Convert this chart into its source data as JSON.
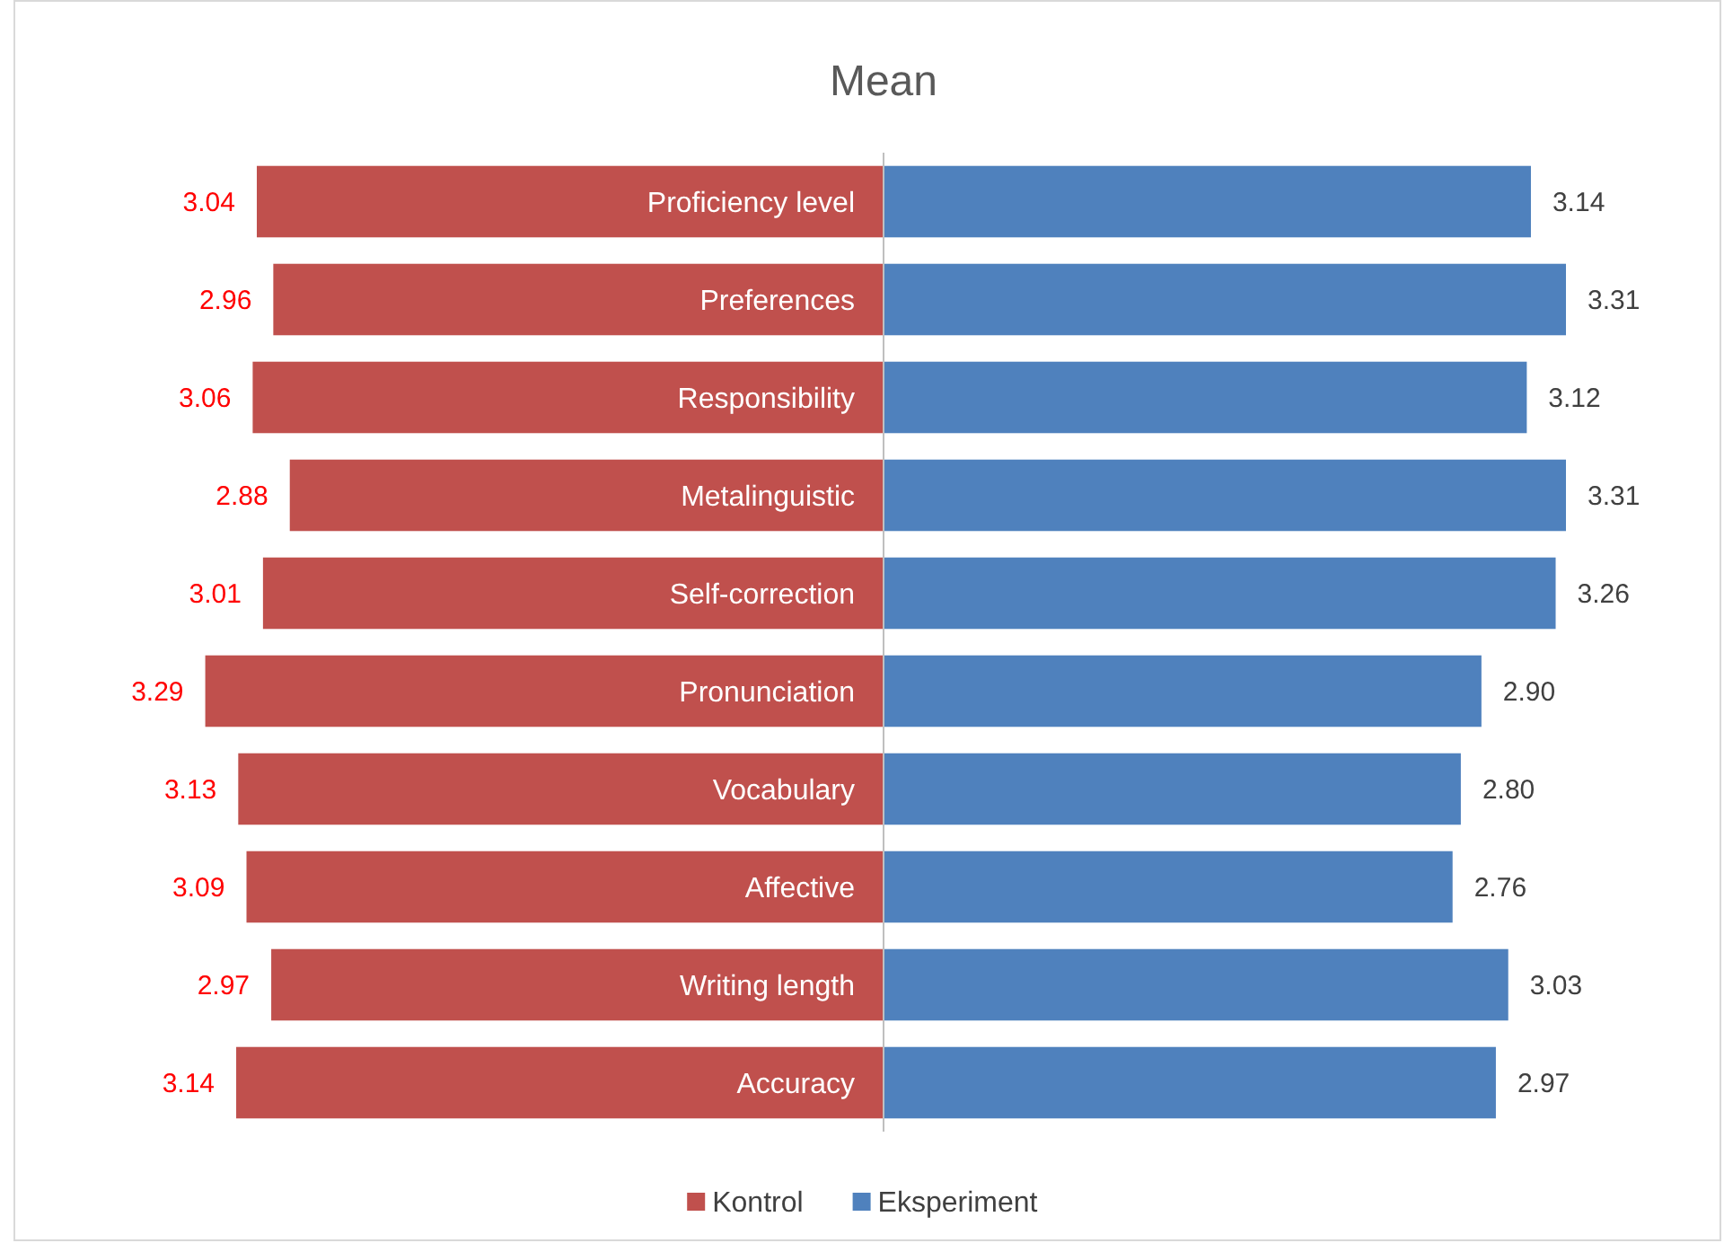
{
  "chart_data": [
    {
      "type": "bar",
      "orientation": "horizontal",
      "title": "Mean",
      "categories": [
        "Proficiency level",
        "Preferences",
        "Responsibility",
        "Metalinguistic",
        "Self-correction",
        "Pronunciation",
        "Vocabulary",
        "Affective",
        "Writing length",
        "Accuracy"
      ],
      "series": [
        {
          "name": "Kontrol",
          "color": "#c0504d",
          "values": [
            3.04,
            2.96,
            3.06,
            2.88,
            3.01,
            3.29,
            3.13,
            3.09,
            2.97,
            3.14
          ],
          "value_labels": [
            "3.04",
            "2.96",
            "3.06",
            "2.88",
            "3.01",
            "3.29",
            "3.13",
            "3.09",
            "2.97",
            "3.14"
          ]
        }
      ],
      "legend": "bottom"
    },
    {
      "type": "bar",
      "orientation": "horizontal",
      "categories": [
        null,
        null,
        null,
        null,
        null,
        null,
        null,
        null,
        null,
        null
      ],
      "series": [
        {
          "name": "Eksperiment",
          "color": "#4f81bd",
          "values": [
            3.14,
            3.31,
            3.12,
            3.31,
            3.26,
            2.9,
            2.8,
            2.76,
            3.03,
            2.97
          ],
          "value_labels": [
            "3.14",
            "3.31",
            "3.12",
            "3.31",
            "3.26",
            "2.90",
            "2.80",
            "2.76",
            "3.03",
            "2.97"
          ]
        }
      ],
      "legend": "bottom"
    }
  ]
}
